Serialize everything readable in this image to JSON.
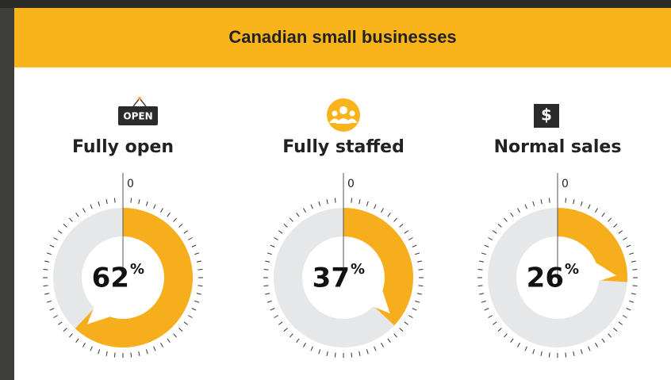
{
  "header": {
    "title": "Canadian small businesses"
  },
  "chart_data": [
    {
      "type": "gauge",
      "title": "Fully open",
      "icon_text": "OPEN",
      "value": 62,
      "unit": "%",
      "ylim": [
        0,
        100
      ],
      "yticks": [
        0
      ],
      "color": "#f7ae1d",
      "track_color": "#e6e7e8"
    },
    {
      "type": "gauge",
      "title": "Fully staffed",
      "value": 37,
      "unit": "%",
      "ylim": [
        0,
        100
      ],
      "yticks": [
        0
      ],
      "color": "#f7ae1d",
      "track_color": "#e6e7e8"
    },
    {
      "type": "gauge",
      "title": "Normal sales",
      "icon_text": "$",
      "value": 26,
      "unit": "%",
      "ylim": [
        0,
        100
      ],
      "yticks": [
        0
      ],
      "color": "#f7ae1d",
      "track_color": "#e6e7e8"
    }
  ]
}
